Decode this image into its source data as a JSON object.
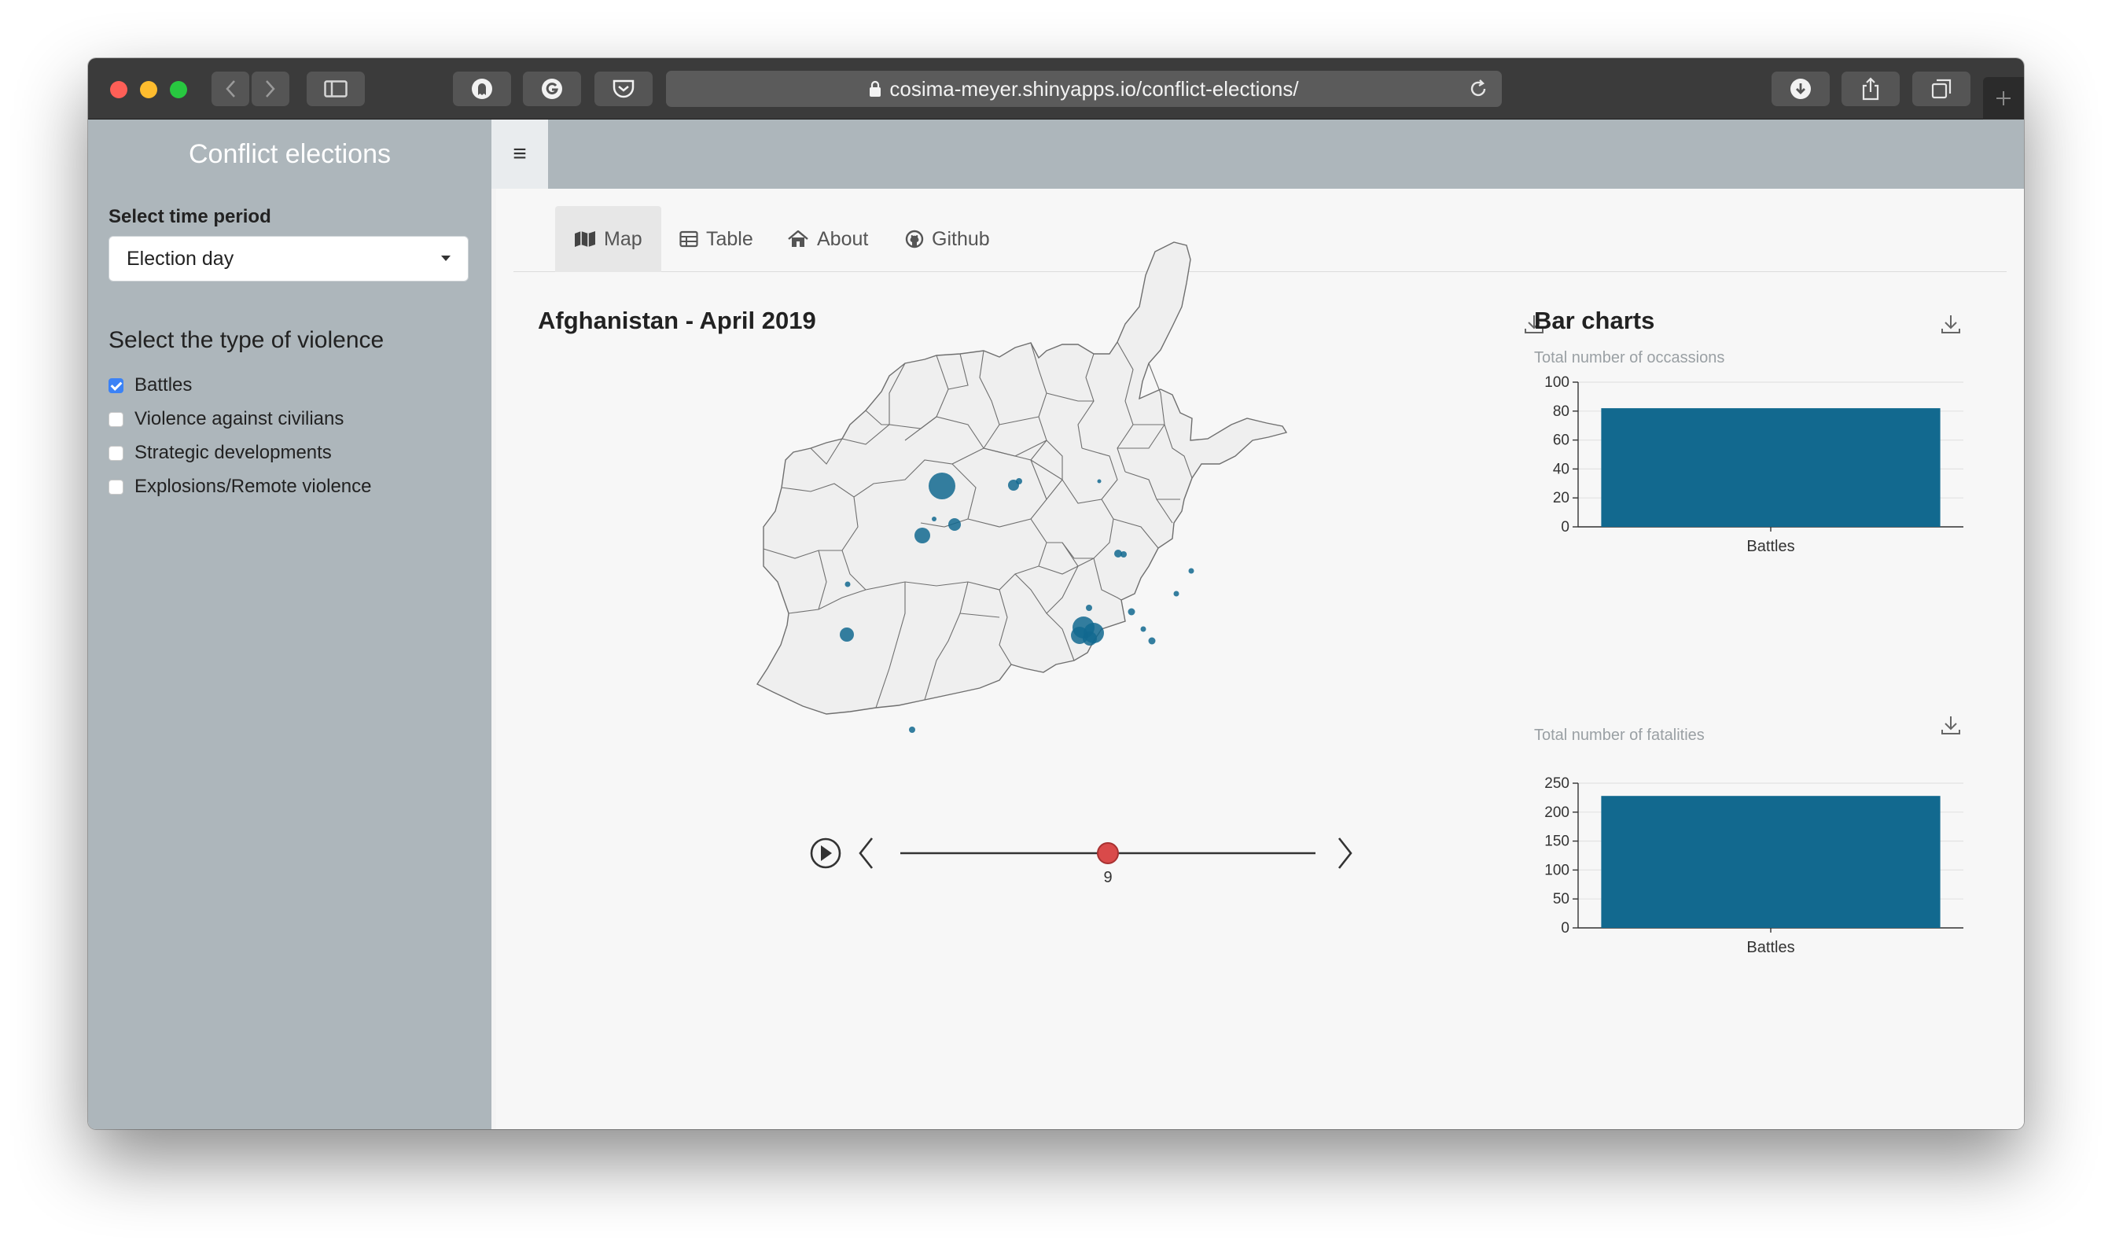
{
  "browser": {
    "url": "cosima-meyer.shinyapps.io/conflict-elections/",
    "colors": {
      "close": "#fe5f57",
      "minimize": "#febc2e",
      "zoom": "#28c840"
    }
  },
  "app": {
    "brand": "Conflict elections",
    "accent": "#12698f"
  },
  "sidebar": {
    "time_label": "Select time period",
    "time_value": "Election day",
    "violence_title": "Select the type of violence",
    "violence_options": [
      {
        "label": "Battles",
        "checked": true
      },
      {
        "label": "Violence against civilians",
        "checked": false
      },
      {
        "label": "Strategic developments",
        "checked": false
      },
      {
        "label": "Explosions/Remote violence",
        "checked": false
      }
    ]
  },
  "tabs": [
    {
      "label": "Map",
      "icon": "map-icon",
      "active": true
    },
    {
      "label": "Table",
      "icon": "table-icon",
      "active": false
    },
    {
      "label": "About",
      "icon": "home-icon",
      "active": false
    },
    {
      "label": "Github",
      "icon": "github-icon",
      "active": false
    }
  ],
  "map": {
    "title": "Afghanistan - April 2019",
    "slider_value": "9"
  },
  "bar_section": {
    "title": "Bar charts"
  },
  "chart_data": [
    {
      "type": "bar",
      "title": "Total number of occassions",
      "categories": [
        "Battles"
      ],
      "values": [
        82
      ],
      "ylim": [
        0,
        100
      ],
      "ticks": [
        0,
        20,
        40,
        60,
        80,
        100
      ],
      "grid": true,
      "color": "#12698f"
    },
    {
      "type": "bar",
      "title": "Total number of fatalities",
      "categories": [
        "Battles"
      ],
      "values": [
        228
      ],
      "ylim": [
        0,
        250
      ],
      "ticks": [
        0,
        50,
        100,
        150,
        200,
        250
      ],
      "grid": true,
      "color": "#12698f"
    }
  ]
}
